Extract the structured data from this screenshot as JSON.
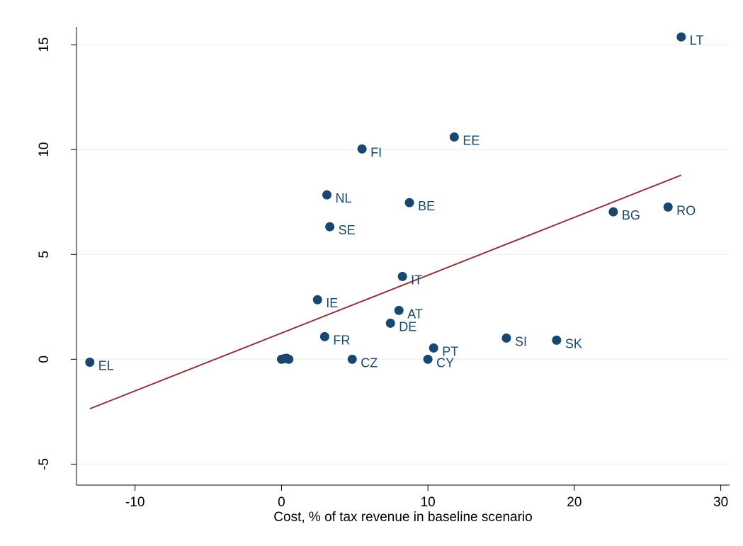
{
  "chart_data": {
    "type": "scatter",
    "x_label": "Cost, % of tax revenue in baseline scenario",
    "series": [
      {
        "color": "#1a476f",
        "x": [
          27.3,
          11.8,
          5.5,
          3.1,
          8.74,
          3.3,
          22.66,
          26.4,
          8.26,
          2.46,
          8.02,
          7.44,
          2.95,
          15.36,
          18.79,
          10.39,
          4.83,
          10.0,
          -13.09,
          0,
          0.2,
          0.35,
          0.5
        ],
        "values": [
          15.37,
          10.6,
          10.03,
          7.84,
          7.47,
          6.32,
          7.03,
          7.26,
          3.95,
          2.84,
          2.33,
          1.72,
          1.08,
          1.01,
          0.91,
          0.54,
          0,
          0,
          -0.14,
          0,
          0.03,
          0.05,
          0
        ],
        "labels": [
          "LT",
          "EE",
          "FI",
          "NL",
          "BE",
          "SE",
          "BG",
          "RO",
          "IT",
          "IE",
          "AT",
          "DE",
          "FR",
          "SI",
          "SK",
          "PT",
          "CZ",
          "CY",
          "EL",
          null,
          null,
          null,
          null
        ]
      }
    ],
    "fit": {
      "color": "#90353b",
      "x": [
        -13.09,
        27.3
      ],
      "values": [
        -2.36,
        8.78
      ]
    },
    "xlim": [
      -14,
      30.6
    ],
    "ylim": [
      -6,
      15.85
    ],
    "xticks": [
      -10,
      0,
      10,
      20,
      30
    ],
    "yticks": [
      -5,
      0,
      5,
      10,
      15
    ],
    "grid": true
  }
}
